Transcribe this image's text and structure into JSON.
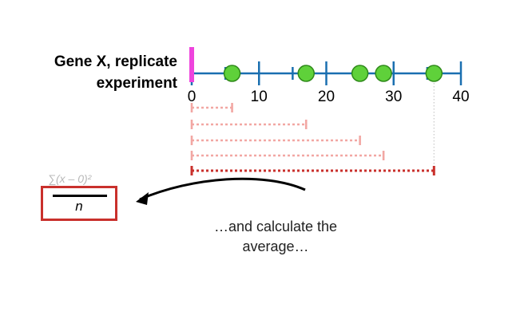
{
  "gene_label": [
    "Gene X, replicate",
    "experiment"
  ],
  "caption": [
    "…and calculate the",
    "average…"
  ],
  "formula": {
    "numerator": "∑(x – 0)²",
    "denominator": "n"
  },
  "colors": {
    "axis": "#1a6fb0",
    "point": "#5fd13a",
    "point_stroke": "#2f8a1a",
    "mean_marker": "#ee44dd",
    "residual_light": "#f2a7a3",
    "residual_strong": "#c9302c",
    "guide": "#c8c8c8"
  },
  "chart_data": {
    "type": "scatter",
    "axis_range": [
      0,
      40
    ],
    "ticks": [
      0,
      10,
      20,
      30,
      40
    ],
    "tick_labels": [
      "0",
      "10",
      "20",
      "30",
      "40"
    ],
    "minor_ticks": [
      0,
      5,
      10,
      15,
      20,
      25,
      30,
      35,
      40
    ],
    "points": [
      6,
      17,
      25,
      28.5,
      36
    ],
    "mean_marker": 0,
    "distances_from_zero": [
      6,
      17,
      25,
      28.5,
      36
    ]
  }
}
